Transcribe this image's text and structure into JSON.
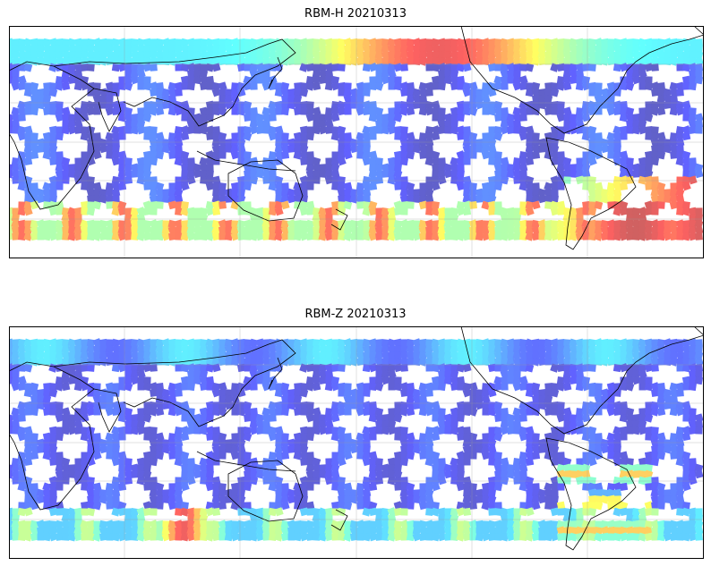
{
  "panels": [
    {
      "title": "RBM-H 20210313",
      "colormap": "jet",
      "scene": "H"
    },
    {
      "title": "RBM-Z 20210313",
      "colormap": "jet",
      "scene": "Z"
    }
  ],
  "map": {
    "projection": "PlateCarree",
    "central_longitude": 180,
    "coastlines": true,
    "gridlines": true,
    "colors": {
      "low": "#6464f0",
      "mid": "#5ac8ff",
      "high": "#e65a5a"
    }
  }
}
